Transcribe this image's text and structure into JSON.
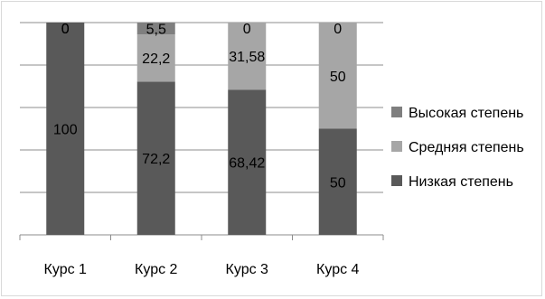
{
  "chart_data": {
    "type": "bar",
    "stacked": true,
    "categories": [
      "Курс 1",
      "Курс 2",
      "Курс 3",
      "Курс 4"
    ],
    "series": [
      {
        "name": "Низкая степень",
        "color": "#595959",
        "values": [
          100,
          72.2,
          68.42,
          50
        ],
        "labels": [
          "100",
          "72,2",
          "68,42",
          "50"
        ]
      },
      {
        "name": "Средняя степень",
        "color": "#a6a6a6",
        "values": [
          0,
          22.2,
          31.58,
          50
        ],
        "labels": [
          "0",
          "22,2",
          "31,58",
          "50"
        ]
      },
      {
        "name": "Высокая степень",
        "color": "#7f7f7f",
        "values": [
          0,
          5.5,
          0,
          0
        ],
        "labels": [
          "0",
          "5,5",
          "0",
          "0"
        ]
      }
    ],
    "ylim": [
      0,
      100
    ],
    "gridlines": true,
    "y_tick_labels_visible": false,
    "legend": {
      "position": "right",
      "order": [
        "Высокая степень",
        "Средняя степень",
        "Низкая степень"
      ]
    },
    "title": "",
    "xlabel": "",
    "ylabel": ""
  }
}
